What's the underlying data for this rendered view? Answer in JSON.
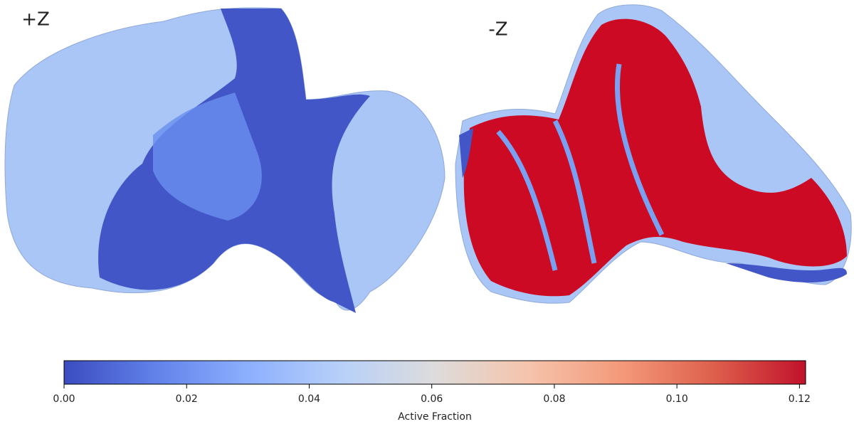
{
  "chart_data": {
    "type": "colorbar",
    "annotations": [
      "+Z",
      "-Z"
    ],
    "xlabel": "Active Fraction",
    "xlim": [
      0,
      0.121
    ],
    "xticks": [
      {
        "value": 0,
        "label": "0.00"
      },
      {
        "value": 0.02,
        "label": "0.02"
      },
      {
        "value": 0.04,
        "label": "0.04"
      },
      {
        "value": 0.06,
        "label": "0.06"
      },
      {
        "value": 0.08,
        "label": "0.08"
      },
      {
        "value": 0.1,
        "label": "0.10"
      },
      {
        "value": 0.12,
        "label": "0.12"
      }
    ],
    "colormap": [
      "#3b4cc0",
      "#6282ea",
      "#8db0fe",
      "#b8d0f9",
      "#dddcdc",
      "#f5c4ac",
      "#f49a7b",
      "#de604d",
      "#c1122b"
    ]
  }
}
